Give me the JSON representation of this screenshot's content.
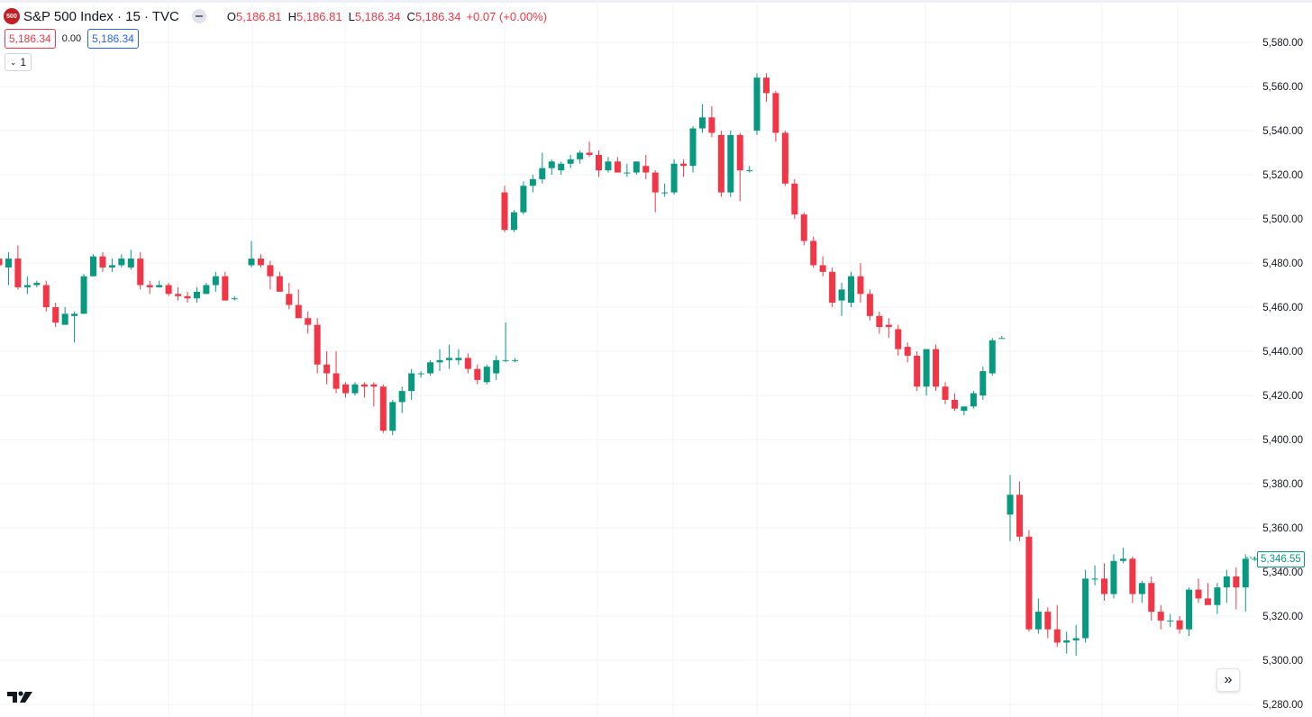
{
  "header": {
    "symbol_badge": "500",
    "title": "S&P 500 Index · 15 · TVC",
    "ohlc": [
      {
        "key": "O",
        "value": "5,186.81"
      },
      {
        "key": "H",
        "value": "5,186.81"
      },
      {
        "key": "L",
        "value": "5,186.34"
      },
      {
        "key": "C",
        "value": "5,186.34"
      }
    ],
    "change": "+0.07 (+0.00%)"
  },
  "quote": {
    "sell": "5,186.34",
    "spread": "0.00",
    "buy": "5,186.34"
  },
  "indicator_toggle": {
    "chevron": "⌄",
    "count": "1"
  },
  "scroll_button": {
    "glyph": "»"
  },
  "last_price_label": "5,346.55",
  "colors": {
    "up": "#089981",
    "down": "#f23645",
    "grid": "#f0f3fa",
    "axis_text": "#131722",
    "brand_badge": "#c41e23",
    "buy_outline": "#2962ff"
  },
  "chart_data": {
    "type": "candlestick",
    "ylim": [
      5280,
      5588
    ],
    "yticks": [
      "5,280.00",
      "5,300.00",
      "5,320.00",
      "5,340.00",
      "5,360.00",
      "5,380.00",
      "5,400.00",
      "5,420.00",
      "5,440.00",
      "5,460.00",
      "5,480.00",
      "5,500.00",
      "5,520.00",
      "5,540.00",
      "5,560.00",
      "5,580.00"
    ],
    "ytick_values": [
      5280,
      5300,
      5320,
      5340,
      5360,
      5380,
      5400,
      5420,
      5440,
      5460,
      5480,
      5500,
      5520,
      5540,
      5560,
      5580
    ],
    "grid": true,
    "sessions": [
      {
        "bars": [
          [
            5482,
            5488,
            5470,
            5479
          ],
          [
            5478,
            5485,
            5470,
            5482
          ],
          [
            5482,
            5488,
            5468,
            5469
          ],
          [
            5469,
            5474,
            5466,
            5470
          ],
          [
            5470,
            5472,
            5469,
            5471
          ],
          [
            5470,
            5472,
            5458,
            5460
          ],
          [
            5460,
            5462,
            5451,
            5453
          ],
          [
            5452,
            5460,
            5452,
            5457
          ],
          [
            5456,
            5458,
            5444,
            5457
          ],
          [
            5457,
            5475,
            5457,
            5474
          ],
          [
            5474,
            5484,
            5474,
            5483
          ],
          [
            5483,
            5485,
            5476,
            5478
          ],
          [
            5478,
            5482,
            5476,
            5479
          ],
          [
            5479,
            5484,
            5478,
            5482
          ],
          [
            5478,
            5486,
            5477,
            5482
          ],
          [
            5482,
            5485,
            5468,
            5470
          ],
          [
            5470,
            5472,
            5466,
            5469
          ],
          [
            5469,
            5472,
            5470,
            5470
          ],
          [
            5470,
            5471,
            5465,
            5466
          ],
          [
            5466,
            5469,
            5463,
            5465
          ],
          [
            5465,
            5467,
            5462,
            5464
          ],
          [
            5464,
            5469,
            5462,
            5467
          ],
          [
            5466,
            5471,
            5466,
            5470
          ],
          [
            5470,
            5476,
            5467,
            5474
          ],
          [
            5474,
            5476,
            5463,
            5463
          ],
          [
            5464,
            5465,
            5463,
            5464
          ]
        ]
      },
      {
        "bars": [
          [
            5479,
            5490,
            5478,
            5482
          ],
          [
            5482,
            5484,
            5478,
            5479
          ],
          [
            5479,
            5481,
            5468,
            5474
          ],
          [
            5474,
            5476,
            5467,
            5467
          ],
          [
            5466,
            5471,
            5459,
            5461
          ],
          [
            5461,
            5468,
            5455,
            5455
          ],
          [
            5455,
            5458,
            5448,
            5452
          ],
          [
            5452,
            5455,
            5430,
            5434
          ],
          [
            5434,
            5440,
            5425,
            5430
          ],
          [
            5430,
            5440,
            5421,
            5423
          ],
          [
            5425,
            5426,
            5419,
            5421
          ],
          [
            5421,
            5426,
            5420,
            5425
          ],
          [
            5425,
            5426,
            5419,
            5424
          ],
          [
            5425,
            5426,
            5415,
            5424
          ],
          [
            5424,
            5425,
            5403,
            5404
          ],
          [
            5404,
            5418,
            5402,
            5417
          ],
          [
            5417,
            5424,
            5412,
            5422
          ],
          [
            5422,
            5432,
            5418,
            5430
          ],
          [
            5430,
            5431,
            5428,
            5430
          ],
          [
            5430,
            5436,
            5429,
            5435
          ],
          [
            5435,
            5441,
            5431,
            5436
          ],
          [
            5436,
            5443,
            5432,
            5437
          ],
          [
            5436,
            5441,
            5434,
            5437
          ],
          [
            5437,
            5439,
            5430,
            5432
          ],
          [
            5432,
            5434,
            5425,
            5427
          ],
          [
            5426,
            5434,
            5425,
            5433
          ],
          [
            5430,
            5438,
            5427,
            5436
          ],
          [
            5436,
            5453,
            5435,
            5436
          ],
          [
            5436,
            5437,
            5435,
            5436
          ]
        ]
      },
      {
        "bars": [
          [
            5512,
            5515,
            5494,
            5495
          ],
          [
            5495,
            5504,
            5494,
            5503
          ],
          [
            5503,
            5517,
            5502,
            5515
          ],
          [
            5515,
            5520,
            5512,
            5518
          ],
          [
            5518,
            5530,
            5516,
            5523
          ],
          [
            5523,
            5527,
            5520,
            5526
          ],
          [
            5522,
            5526,
            5520,
            5525
          ],
          [
            5525,
            5529,
            5523,
            5527
          ],
          [
            5527,
            5531,
            5525,
            5530
          ],
          [
            5530,
            5535,
            5528,
            5529
          ],
          [
            5529,
            5531,
            5519,
            5522
          ],
          [
            5522,
            5528,
            5521,
            5526
          ],
          [
            5526,
            5528,
            5521,
            5521
          ],
          [
            5521,
            5525,
            5519,
            5521
          ],
          [
            5521,
            5526,
            5520,
            5526
          ],
          [
            5524,
            5529,
            5518,
            5521
          ],
          [
            5521,
            5522,
            5503,
            5512
          ],
          [
            5512,
            5516,
            5510,
            5512
          ],
          [
            5512,
            5527,
            5511,
            5525
          ],
          [
            5525,
            5527,
            5519,
            5524
          ],
          [
            5524,
            5542,
            5521,
            5541
          ],
          [
            5541,
            5552,
            5539,
            5546
          ],
          [
            5546,
            5551,
            5537,
            5539
          ],
          [
            5538,
            5540,
            5510,
            5512
          ],
          [
            5512,
            5540,
            5510,
            5538
          ],
          [
            5538,
            5539,
            5508,
            5522
          ],
          [
            5522,
            5524,
            5521,
            5522
          ]
        ]
      },
      {
        "bars": [
          [
            5540,
            5566,
            5538,
            5564
          ],
          [
            5564,
            5566,
            5553,
            5557
          ],
          [
            5557,
            5558,
            5535,
            5539
          ],
          [
            5539,
            5540,
            5515,
            5516
          ],
          [
            5516,
            5518,
            5500,
            5502
          ],
          [
            5502,
            5503,
            5488,
            5490
          ],
          [
            5490,
            5492,
            5478,
            5479
          ],
          [
            5479,
            5483,
            5474,
            5476
          ],
          [
            5476,
            5478,
            5460,
            5462
          ],
          [
            5463,
            5471,
            5456,
            5468
          ],
          [
            5462,
            5476,
            5460,
            5474
          ],
          [
            5474,
            5480,
            5462,
            5466
          ],
          [
            5466,
            5468,
            5454,
            5456
          ],
          [
            5456,
            5458,
            5448,
            5451
          ],
          [
            5452,
            5455,
            5446,
            5451
          ],
          [
            5450,
            5452,
            5438,
            5441
          ],
          [
            5442,
            5444,
            5435,
            5438
          ],
          [
            5438,
            5440,
            5422,
            5424
          ],
          [
            5424,
            5441,
            5420,
            5441
          ],
          [
            5441,
            5443,
            5422,
            5424
          ],
          [
            5424,
            5426,
            5416,
            5418
          ],
          [
            5418,
            5421,
            5413,
            5414
          ],
          [
            5413,
            5415,
            5411,
            5415
          ],
          [
            5415,
            5422,
            5414,
            5421
          ],
          [
            5420,
            5433,
            5418,
            5431
          ],
          [
            5430,
            5446,
            5429,
            5445
          ],
          [
            5446,
            5447,
            5446,
            5446
          ]
        ]
      },
      {
        "bars": [
          [
            5366,
            5384,
            5354,
            5375
          ],
          [
            5375,
            5381,
            5354,
            5356
          ],
          [
            5356,
            5359,
            5313,
            5314
          ],
          [
            5314,
            5328,
            5312,
            5322
          ],
          [
            5322,
            5324,
            5310,
            5314
          ],
          [
            5314,
            5325,
            5306,
            5308
          ],
          [
            5308,
            5313,
            5303,
            5309
          ],
          [
            5309,
            5316,
            5302,
            5310
          ],
          [
            5310,
            5341,
            5308,
            5337
          ],
          [
            5337,
            5343,
            5334,
            5337
          ],
          [
            5337,
            5344,
            5327,
            5330
          ],
          [
            5330,
            5348,
            5328,
            5345
          ],
          [
            5345,
            5351,
            5344,
            5346
          ],
          [
            5346,
            5347,
            5326,
            5330
          ],
          [
            5330,
            5336,
            5326,
            5335
          ],
          [
            5335,
            5338,
            5318,
            5322
          ],
          [
            5322,
            5325,
            5314,
            5318
          ],
          [
            5318,
            5321,
            5315,
            5318
          ],
          [
            5318,
            5320,
            5312,
            5314
          ],
          [
            5314,
            5333,
            5311,
            5332
          ],
          [
            5332,
            5337,
            5326,
            5328
          ],
          [
            5328,
            5335,
            5326,
            5325
          ],
          [
            5325,
            5335,
            5321,
            5333
          ],
          [
            5333,
            5341,
            5326,
            5338
          ],
          [
            5338,
            5342,
            5323,
            5333
          ],
          [
            5333,
            5348,
            5322,
            5346
          ],
          [
            5346,
            5347,
            5345,
            5346
          ]
        ]
      }
    ]
  }
}
